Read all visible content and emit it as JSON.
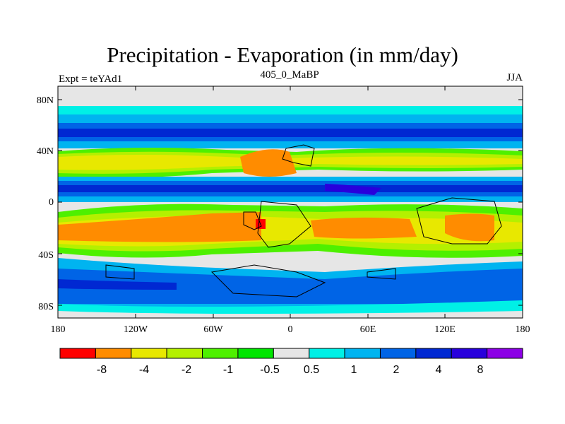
{
  "title": "Precipitation - Evaporation (in mm/day)",
  "subtitle_left": "Expt = teYAd1",
  "subtitle_center": "405_0_MaBP",
  "subtitle_right": "JJA",
  "lat_ticks": [
    "80N",
    "40N",
    "0",
    "40S",
    "80S"
  ],
  "lon_ticks": [
    "180",
    "120W",
    "60W",
    "0",
    "60E",
    "120E",
    "180"
  ],
  "colorbar": {
    "colors": [
      "#ff0000",
      "#ff8c00",
      "#e8e800",
      "#b4f000",
      "#4ef000",
      "#00e600",
      "#e6e6e6",
      "#00f0e6",
      "#00b4f0",
      "#0064e6",
      "#0028d2",
      "#2800dc",
      "#8c00e6"
    ],
    "labels": [
      "-8",
      "-4",
      "-2",
      "-1",
      "-0.5",
      "0.5",
      "1",
      "2",
      "4",
      "8"
    ]
  },
  "map": {
    "background": "#e6e6e6",
    "colors": {
      "dry_extreme": "#ff0000",
      "dry_strong": "#ff8c00",
      "dry_mod": "#e8e800",
      "dry_light": "#b4f000",
      "dry_weak": "#4ef000",
      "neutral": "#e6e6e6",
      "wet_weak": "#00f0e6",
      "wet_light": "#00b4f0",
      "wet_mod": "#0064e6",
      "wet_strong": "#0028d2",
      "wet_extreme": "#8c00e6"
    }
  }
}
